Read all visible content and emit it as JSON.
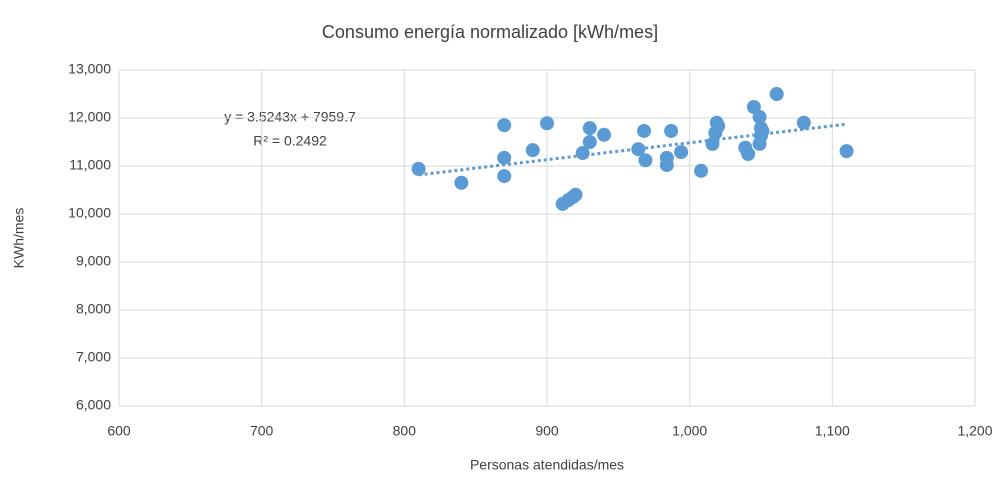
{
  "chart_data": {
    "type": "scatter",
    "title": "Consumo energía  normalizado [kWh/mes]",
    "x_label": "Personas atendidas/mes",
    "y_label": "KWh/mes",
    "series": [
      {
        "color": "#5b9bd5",
        "x": [
          810,
          840,
          870,
          870,
          870,
          890,
          900,
          911,
          915,
          918,
          920,
          925,
          930,
          930,
          940,
          964,
          968,
          969,
          984,
          984,
          987,
          994,
          1008,
          1016,
          1018,
          1019,
          1020,
          1039,
          1041,
          1045,
          1049,
          1049,
          1050,
          1050,
          1051,
          1061,
          1080,
          1110
        ],
        "values": [
          10940,
          10650,
          11850,
          11170,
          10790,
          11330,
          11890,
          10210,
          10290,
          10350,
          10400,
          11270,
          11790,
          11500,
          11650,
          11350,
          11730,
          11120,
          11170,
          11020,
          11730,
          11290,
          10900,
          11460,
          11690,
          11900,
          11830,
          11380,
          11250,
          12230,
          12020,
          11460,
          11790,
          11630,
          11730,
          12500,
          11900,
          11310
        ]
      }
    ],
    "trendline": {
      "slope": 3.5243,
      "intercept": 7959.7,
      "equation": "y = 3.5243x + 7959.7",
      "r2": "R² = 0.2492",
      "style": "dotted"
    },
    "xlim": [
      600,
      1200
    ],
    "xticks": [
      600,
      700,
      800,
      900,
      {
        "value": 1000,
        "label": "1,000"
      },
      {
        "value": 1100,
        "label": "1,100"
      },
      {
        "value": 1200,
        "label": "1,200"
      }
    ],
    "ylim": [
      6000,
      13000
    ],
    "yticks": [
      {
        "value": 6000,
        "label": "6,000"
      },
      {
        "value": 7000,
        "label": "7,000"
      },
      {
        "value": 8000,
        "label": "8,000"
      },
      {
        "value": 9000,
        "label": "9,000"
      },
      {
        "value": 10000,
        "label": "10,000"
      },
      {
        "value": 11000,
        "label": "11,000"
      },
      {
        "value": 12000,
        "label": "12,000"
      },
      {
        "value": 13000,
        "label": "13,000"
      }
    ],
    "grid": true
  }
}
